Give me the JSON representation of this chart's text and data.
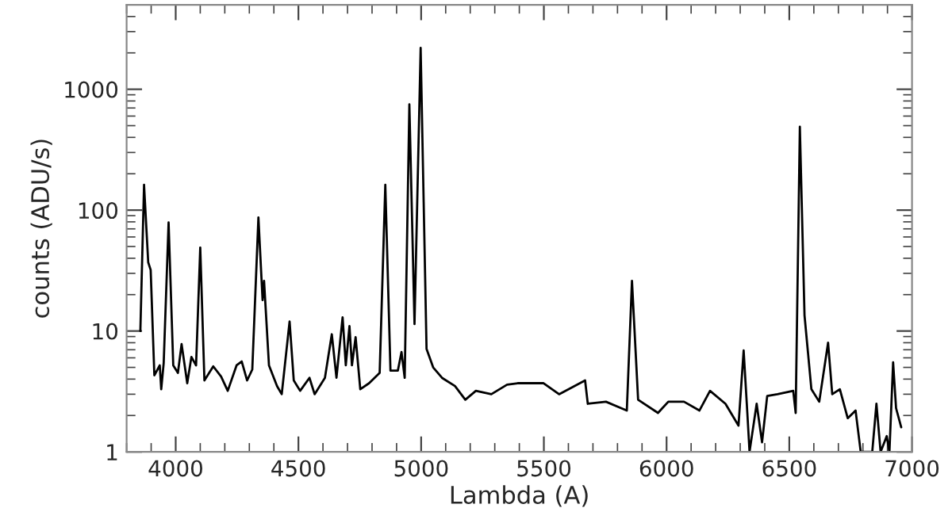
{
  "chart_data": {
    "type": "line",
    "xlabel": "Lambda (A)",
    "ylabel": "counts (ADU/s)",
    "log": "y",
    "grid": false,
    "legend": false,
    "marker": "none",
    "line_style": "solid",
    "xlim": [
      3800,
      7000
    ],
    "ylim": [
      1,
      5000
    ],
    "xticks": [
      4000,
      4500,
      5000,
      5500,
      6000,
      6500,
      7000
    ],
    "yticks": [
      1,
      10,
      100,
      1000
    ],
    "series": [
      {
        "color": "#000000",
        "x": [
          3856,
          3871,
          3888,
          3898,
          3913,
          3935,
          3941,
          3951,
          3971,
          3990,
          4009,
          4024,
          4047,
          4064,
          4083,
          4100,
          4117,
          4153,
          4185,
          4212,
          4248,
          4269,
          4291,
          4312,
          4337,
          4354,
          4360,
          4380,
          4413,
          4432,
          4464,
          4481,
          4507,
          4545,
          4566,
          4608,
          4636,
          4655,
          4680,
          4693,
          4708,
          4718,
          4733,
          4752,
          4788,
          4831,
          4854,
          4875,
          4905,
          4920,
          4933,
          4952,
          4973,
          4998,
          5022,
          5049,
          5085,
          5138,
          5180,
          5223,
          5286,
          5350,
          5393,
          5499,
          5562,
          5668,
          5679,
          5753,
          5838,
          5859,
          5884,
          5965,
          6007,
          6071,
          6134,
          6177,
          6240,
          6293,
          6314,
          6329,
          6338,
          6367,
          6389,
          6410,
          6452,
          6516,
          6526,
          6543,
          6562,
          6590,
          6622,
          6658,
          6675,
          6706,
          6738,
          6770,
          6791,
          6838,
          6855,
          6872,
          6897,
          6908,
          6923,
          6935,
          6956
        ],
        "values": [
          10,
          162,
          37,
          32,
          4.3,
          5.2,
          3.3,
          5.4,
          79,
          5.2,
          4.5,
          7.8,
          3.7,
          6.1,
          5.2,
          49,
          3.9,
          5.1,
          4.2,
          3.2,
          5.2,
          5.6,
          3.9,
          4.8,
          87,
          18,
          26,
          5.2,
          3.5,
          3.0,
          12,
          3.9,
          3.2,
          4.1,
          3.0,
          4.1,
          9.4,
          4.1,
          13,
          5.2,
          11,
          5.2,
          8.9,
          3.3,
          3.7,
          4.5,
          162,
          4.7,
          4.7,
          6.7,
          4.1,
          750,
          11.4,
          2200,
          7.1,
          5.0,
          4.1,
          3.5,
          2.7,
          3.2,
          3.0,
          3.6,
          3.7,
          3.7,
          3.0,
          3.9,
          2.5,
          2.6,
          2.2,
          26,
          2.7,
          2.1,
          2.6,
          2.6,
          2.2,
          3.2,
          2.5,
          1.65,
          6.9,
          2.1,
          1,
          2.5,
          1.2,
          2.9,
          3.0,
          3.2,
          2.1,
          490,
          13.5,
          3.3,
          2.6,
          8,
          3.0,
          3.3,
          1.9,
          2.2,
          1,
          1,
          2.5,
          1,
          1.35,
          1,
          5.5,
          2.3,
          1.6
        ]
      }
    ]
  }
}
